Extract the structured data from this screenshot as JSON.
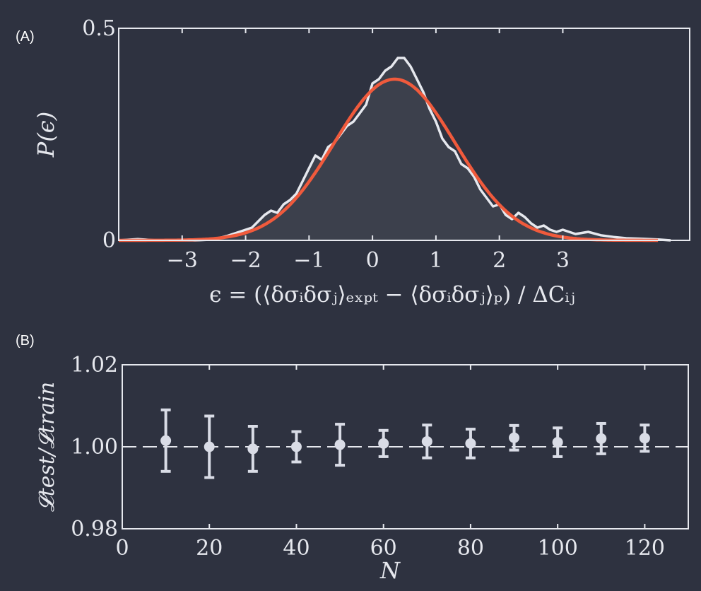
{
  "panel_a_label": "(A)",
  "panel_b_label": "(B)",
  "colors": {
    "background": "#2e3240",
    "axes": "#e6e8ee",
    "histogram": "#e6e8ee",
    "fill": "#3c404c",
    "fit": "#f05a3c",
    "markers": "#d9dce6"
  },
  "chart_data": [
    {
      "type": "area",
      "panel": "A",
      "ylabel": "P(ϵ)",
      "xlabel": "ϵ = (⟨δσᵢδσⱼ⟩ₑₓₚₜ − ⟨δσᵢδσⱼ⟩ₚ) / ΔCᵢⱼ",
      "xlim": [
        -4.0,
        5.0
      ],
      "ylim": [
        0,
        0.5
      ],
      "xticks": [
        -3,
        -2,
        -1,
        0,
        1,
        2,
        3
      ],
      "xtick_labels": [
        "−3",
        "−2",
        "−1",
        "0",
        "1",
        "2",
        "3"
      ],
      "yticks": [
        0,
        0.5
      ],
      "ytick_labels": [
        "0",
        "0.5"
      ],
      "series": [
        {
          "role": "histogram",
          "x": [
            -4.0,
            -3.7,
            -3.4,
            -3.1,
            -2.8,
            -2.5,
            -2.3,
            -2.1,
            -1.9,
            -1.8,
            -1.7,
            -1.6,
            -1.5,
            -1.4,
            -1.3,
            -1.2,
            -1.1,
            -1.0,
            -0.9,
            -0.8,
            -0.7,
            -0.6,
            -0.5,
            -0.4,
            -0.3,
            -0.2,
            -0.1,
            0.0,
            0.1,
            0.2,
            0.3,
            0.4,
            0.5,
            0.6,
            0.7,
            0.8,
            0.9,
            1.0,
            1.1,
            1.2,
            1.3,
            1.4,
            1.5,
            1.6,
            1.7,
            1.8,
            1.9,
            2.0,
            2.1,
            2.2,
            2.3,
            2.4,
            2.5,
            2.6,
            2.7,
            2.8,
            2.9,
            3.0,
            3.2,
            3.4,
            3.6,
            3.8,
            4.0,
            4.2,
            4.5,
            4.7
          ],
          "values": [
            0.0,
            0.003,
            0.0,
            0.0,
            0.0,
            0.002,
            0.01,
            0.02,
            0.03,
            0.045,
            0.06,
            0.07,
            0.065,
            0.085,
            0.095,
            0.11,
            0.14,
            0.17,
            0.2,
            0.19,
            0.22,
            0.23,
            0.25,
            0.27,
            0.28,
            0.3,
            0.32,
            0.37,
            0.38,
            0.4,
            0.41,
            0.43,
            0.43,
            0.41,
            0.38,
            0.35,
            0.31,
            0.28,
            0.24,
            0.22,
            0.21,
            0.18,
            0.17,
            0.15,
            0.12,
            0.1,
            0.08,
            0.085,
            0.06,
            0.05,
            0.065,
            0.055,
            0.04,
            0.03,
            0.035,
            0.025,
            0.02,
            0.025,
            0.015,
            0.02,
            0.012,
            0.008,
            0.005,
            0.004,
            0.002,
            0.0
          ]
        },
        {
          "role": "fit",
          "type": "line",
          "gaussian": {
            "amplitude": 0.38,
            "mean": 0.35,
            "sigma": 0.95
          }
        }
      ]
    },
    {
      "type": "scatter",
      "panel": "B",
      "ylabel": "𝓛test/𝓛train",
      "xlabel": "N",
      "xlim": [
        0,
        130
      ],
      "ylim": [
        0.98,
        1.02
      ],
      "xticks": [
        0,
        20,
        40,
        60,
        80,
        100,
        120
      ],
      "xtick_labels": [
        "0",
        "20",
        "40",
        "60",
        "80",
        "100",
        "120"
      ],
      "yticks": [
        0.98,
        1.0,
        1.02
      ],
      "ytick_labels": [
        "0.98",
        "1.00",
        "1.02"
      ],
      "reference_line": 1.0,
      "x": [
        10,
        20,
        30,
        40,
        50,
        60,
        70,
        80,
        90,
        100,
        110,
        120
      ],
      "values": [
        1.0015,
        1.0,
        0.9995,
        1.0,
        1.0005,
        1.0008,
        1.0013,
        1.0008,
        1.0022,
        1.0011,
        1.002,
        1.0021
      ],
      "errors": [
        0.0075,
        0.0075,
        0.0055,
        0.0037,
        0.005,
        0.0032,
        0.004,
        0.0035,
        0.003,
        0.0035,
        0.0037,
        0.0032
      ]
    }
  ]
}
